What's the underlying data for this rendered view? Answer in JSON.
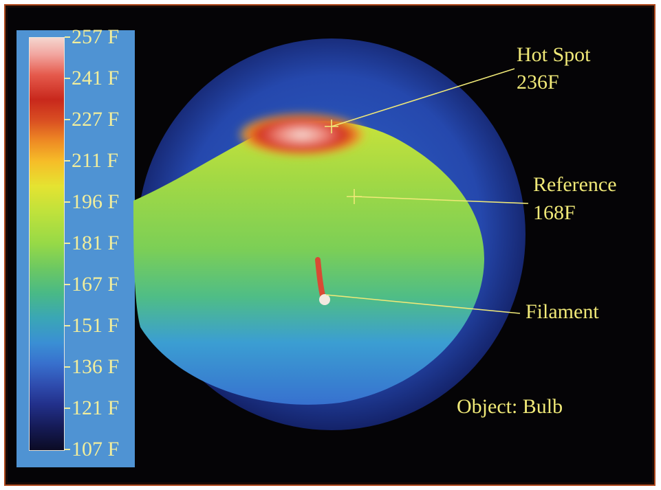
{
  "scale": {
    "ticks": [
      "257 F",
      "241 F",
      "227 F",
      "211 F",
      "196 F",
      "181 F",
      "167 F",
      "151 F",
      "136 F",
      "121 F",
      "107 F"
    ]
  },
  "annotations": {
    "hot_spot": {
      "label": "Hot Spot",
      "value": "236F"
    },
    "reference": {
      "label": "Reference",
      "value": "168F"
    },
    "filament": {
      "label": "Filament"
    },
    "object": "Object: Bulb"
  },
  "colors": {
    "frame_border": "#b14a1d",
    "scale_panel": "#4f93d3",
    "annotation_text": "#f0e978"
  }
}
